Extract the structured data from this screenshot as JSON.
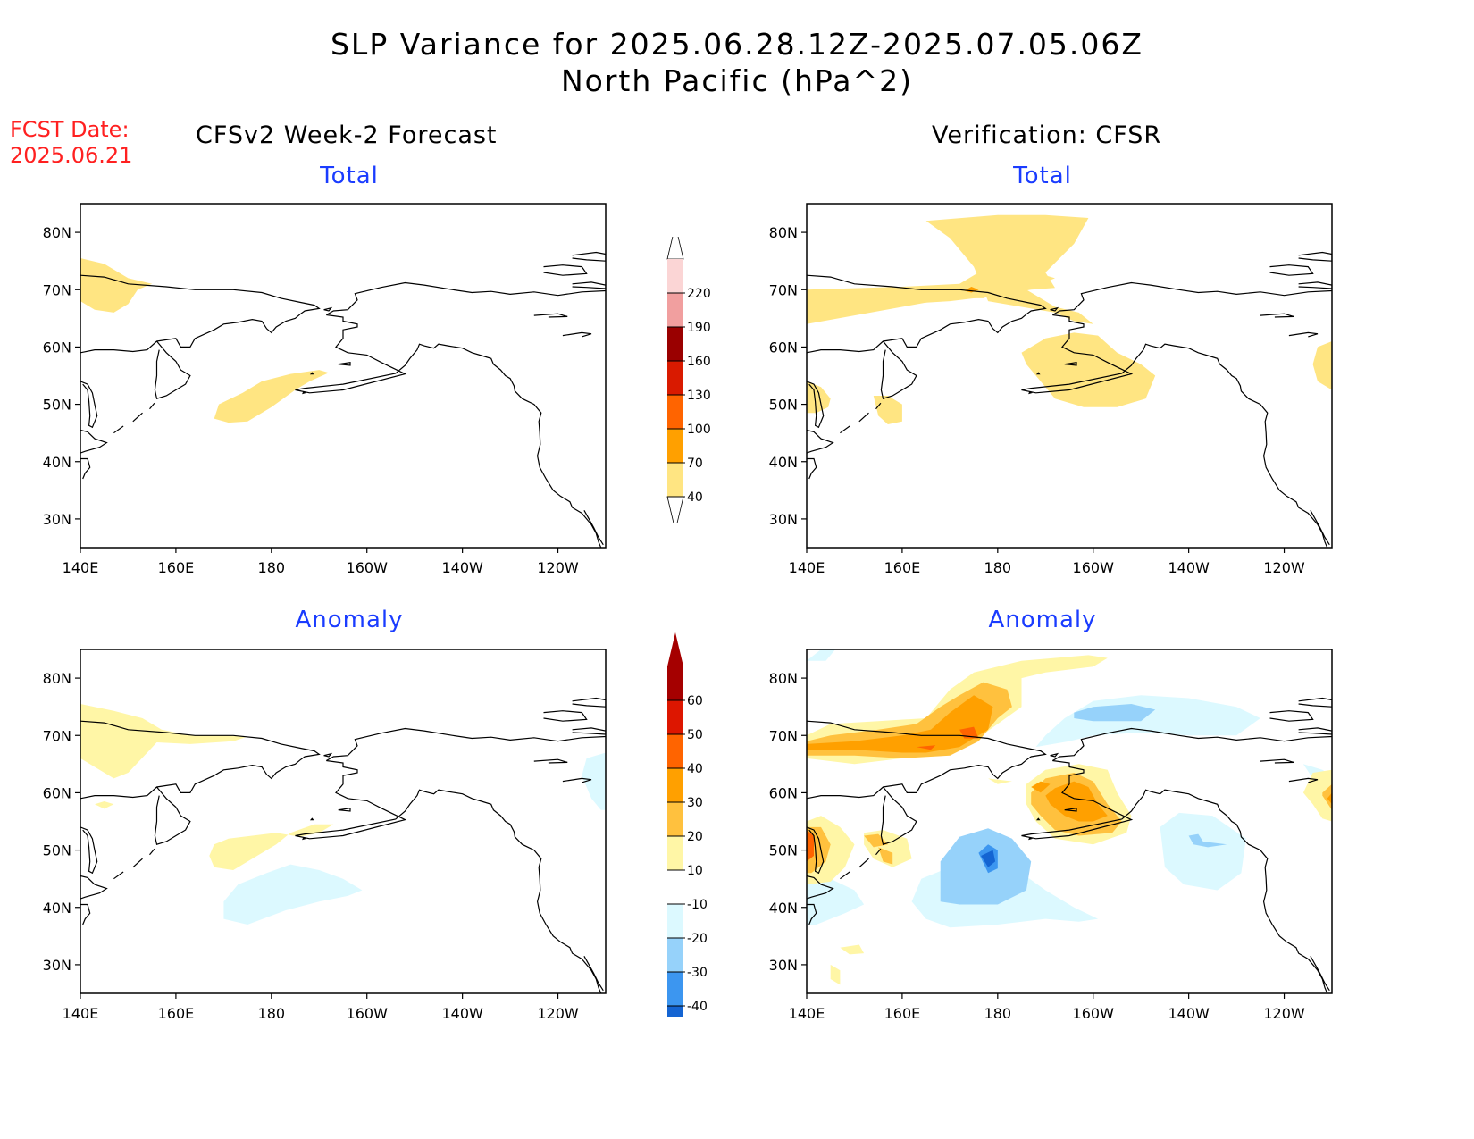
{
  "title": {
    "line1": "SLP Variance for 2025.06.28.12Z-2025.07.05.06Z",
    "line2": "North Pacific (hPa^2)"
  },
  "fcst_date": {
    "label": "FCST Date:",
    "value": "2025.06.21"
  },
  "columns": {
    "left": "CFSv2 Week-2 Forecast",
    "right": "Verification: CFSR"
  },
  "panels": {
    "top_left": {
      "subtitle": "Total"
    },
    "top_right": {
      "subtitle": "Total"
    },
    "bottom_left": {
      "subtitle": "Anomaly"
    },
    "bottom_right": {
      "subtitle": "Anomaly"
    }
  },
  "axes": {
    "lat_labels": [
      "80N",
      "70N",
      "60N",
      "50N",
      "40N",
      "30N"
    ],
    "lat_values": [
      80,
      70,
      60,
      50,
      40,
      30
    ],
    "lon_labels": [
      "140E",
      "160E",
      "180",
      "160W",
      "140W",
      "120W"
    ],
    "lon_values": [
      140,
      160,
      180,
      200,
      220,
      240
    ],
    "lat_range": [
      25,
      85
    ],
    "lon_range": [
      140,
      250
    ]
  },
  "colorbars": {
    "total": {
      "labels": [
        "220",
        "190",
        "160",
        "130",
        "100",
        "70",
        "40"
      ],
      "colors": [
        "#fbd5d5",
        "#f19f9f",
        "#9a0000",
        "#d91a00",
        "#ff6400",
        "#ffa000",
        "#ffe582"
      ]
    },
    "anomaly": {
      "labels": [
        "60",
        "50",
        "40",
        "30",
        "20",
        "10",
        "-10",
        "-20",
        "-30",
        "-40"
      ],
      "colors": [
        "#a50000",
        "#dd1600",
        "#ff6400",
        "#ffa000",
        "#ffc13e",
        "#fff6a6",
        "#ffffff",
        "#dcf9ff",
        "#96d2fa",
        "#3c96f0",
        "#1464d2"
      ]
    }
  },
  "colors": {
    "label_red": "#ff2020",
    "subtitle_blue": "#1a3cff"
  }
}
